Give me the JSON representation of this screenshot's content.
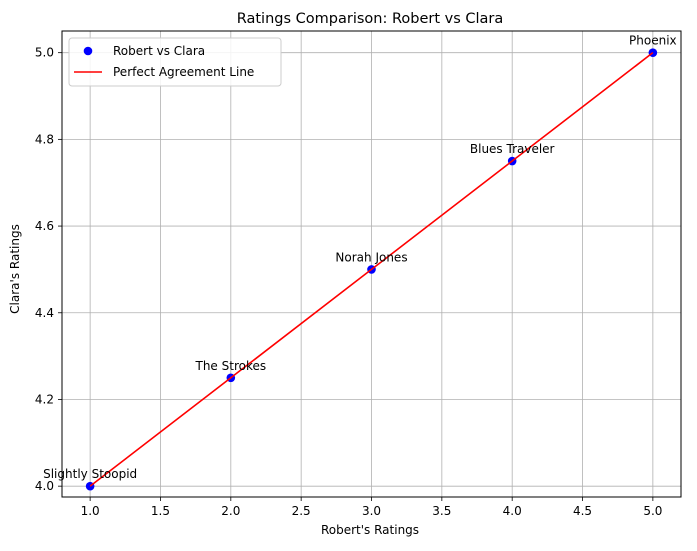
{
  "chart_data": {
    "type": "scatter",
    "title": "Ratings Comparison: Robert vs Clara",
    "xlabel": "Robert's Ratings",
    "ylabel": "Clara's Ratings",
    "xlim": [
      0.8,
      5.2
    ],
    "ylim": [
      3.975,
      5.05
    ],
    "xticks": [
      1.0,
      1.5,
      2.0,
      2.5,
      3.0,
      3.5,
      4.0,
      4.5,
      5.0
    ],
    "yticks": [
      4.0,
      4.2,
      4.4,
      4.6,
      4.8,
      5.0
    ],
    "grid": true,
    "legend_position": "top-left",
    "series": [
      {
        "name": "Robert vs Clara",
        "kind": "scatter",
        "color": "#0000ff",
        "points": [
          {
            "x": 1,
            "y": 4.0,
            "label": "Slightly Stoopid"
          },
          {
            "x": 2,
            "y": 4.25,
            "label": "The Strokes"
          },
          {
            "x": 3,
            "y": 4.5,
            "label": "Norah Jones"
          },
          {
            "x": 4,
            "y": 4.75,
            "label": "Blues Traveler"
          },
          {
            "x": 5,
            "y": 5.0,
            "label": "Phoenix"
          }
        ]
      },
      {
        "name": "Perfect Agreement Line",
        "kind": "line",
        "color": "#ff0000",
        "points": [
          {
            "x": 1,
            "y": 4.0
          },
          {
            "x": 2,
            "y": 4.25
          },
          {
            "x": 3,
            "y": 4.5
          },
          {
            "x": 4,
            "y": 4.75
          },
          {
            "x": 5,
            "y": 5.0
          }
        ]
      }
    ]
  }
}
